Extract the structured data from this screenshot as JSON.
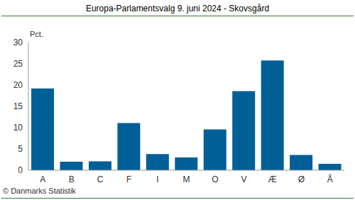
{
  "chart_data": {
    "type": "bar",
    "title": "Europa-Parlamentsvalg 9. juni 2024 - Skovsgård",
    "ylabel": "Pct.",
    "footer": "© Danmarks Statistik",
    "categories": [
      "A",
      "B",
      "C",
      "F",
      "I",
      "M",
      "O",
      "V",
      "Æ",
      "Ø",
      "Å"
    ],
    "values": [
      19.2,
      2.0,
      2.1,
      11.1,
      3.8,
      3.0,
      9.6,
      18.6,
      25.8,
      3.6,
      1.5
    ],
    "color": "#005f96",
    "ylim": [
      0,
      30
    ],
    "yticks": [
      0,
      5,
      10,
      15,
      20,
      25,
      30
    ],
    "grid": false
  }
}
